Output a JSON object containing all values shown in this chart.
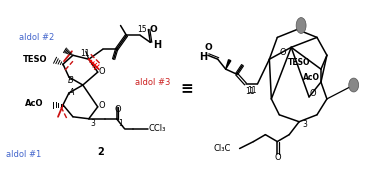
{
  "bg_color": "#ffffff",
  "figsize": [
    3.78,
    1.77
  ],
  "dpi": 100,
  "equiv_symbol": "≡",
  "aldol1_label": "aldol #1",
  "aldol2_label": "aldol #2",
  "aldol3_label": "aldol #3",
  "compound_label": "2",
  "teso_label": "TESO",
  "aco_label": "AcO",
  "ring_A_label": "A",
  "ring_B_label": "B",
  "o_label": "O",
  "h_label": "H",
  "num11": "11",
  "num15": "15",
  "num3": "3",
  "num1": "1",
  "ccl3_label": "CCl₃",
  "cl3c_label": "Cl₃C",
  "aldol_color": "#4466cc",
  "aldol3_color": "#cc2222",
  "red_color": "#cc1111"
}
